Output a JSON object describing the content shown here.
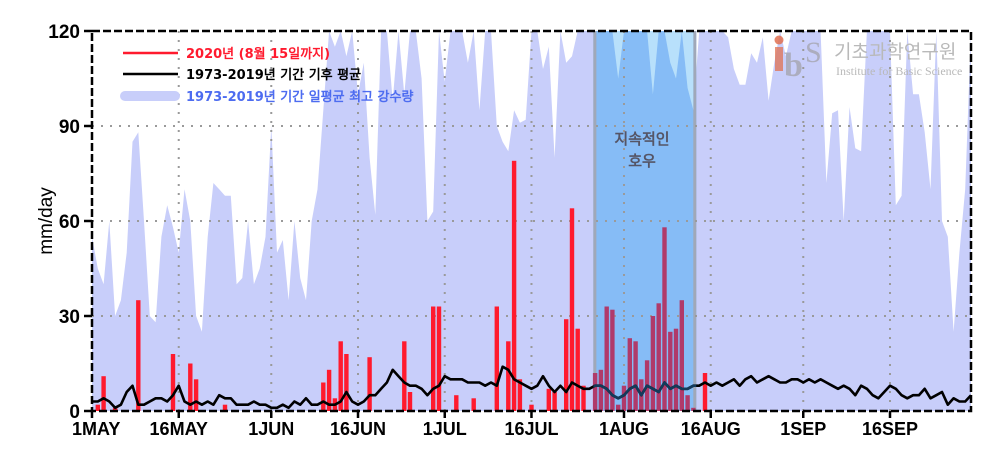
{
  "chart_data": {
    "type": "bar",
    "title": "",
    "xlabel": "",
    "ylabel": "mm/day",
    "ylim": [
      0,
      120
    ],
    "yticks": [
      0,
      30,
      60,
      90,
      120
    ],
    "xticks": [
      "1MAY",
      "16MAY",
      "1JUN",
      "16JUN",
      "1JUL",
      "16JUL",
      "1AUG",
      "16AUG",
      "1SEP",
      "16SEP"
    ],
    "xtick_day_index": [
      0,
      15,
      31,
      46,
      61,
      76,
      92,
      107,
      123,
      138
    ],
    "x_range_days": [
      0,
      152
    ],
    "grid": true,
    "legend_position": "upper-left",
    "legend": [
      {
        "label": "2020년 (8월 15일까지)",
        "color": "#ff1a2e",
        "kind": "line"
      },
      {
        "label": "1973-2019년 기간 기후 평균",
        "color": "#000000",
        "kind": "line"
      },
      {
        "label": "1973-2019년 기간 일평균 최고 강수량",
        "color": "#4d6cf0",
        "kind": "band",
        "band_color": "#c8cefa"
      }
    ],
    "annotation": {
      "text_line1": "지속적인",
      "text_line2": "호우",
      "start_day": 86.7,
      "end_day": 104.5,
      "color": "#7ab8f5"
    },
    "series": [
      {
        "name": "2020년 (8월 15일까지)",
        "type": "bar",
        "color": "#ff1a2e",
        "days": [
          1,
          2,
          4,
          8,
          14,
          17,
          18,
          23,
          40,
          41,
          42,
          43,
          44,
          48,
          54,
          55,
          59,
          60,
          63,
          66,
          70,
          72,
          73,
          74,
          76,
          79,
          80,
          82,
          83,
          84,
          85,
          87,
          88,
          89,
          90,
          91,
          92,
          93,
          94,
          95,
          96,
          97,
          98,
          99,
          100,
          101,
          102,
          103,
          104,
          106
        ],
        "values": [
          2,
          11,
          1,
          35,
          18,
          15,
          10,
          2,
          9,
          13,
          4,
          22,
          18,
          17,
          22,
          6,
          33,
          33,
          5,
          4,
          33,
          22,
          79,
          10,
          2,
          7,
          6,
          29,
          64,
          26,
          8,
          12,
          13,
          33,
          32,
          2,
          8,
          23,
          22,
          10,
          16,
          30,
          34,
          58,
          25,
          26,
          35,
          5,
          1,
          12
        ]
      },
      {
        "name": "1973-2019년 기간 기후 평균",
        "type": "line",
        "color": "#000000",
        "values": [
          3,
          3,
          4,
          3,
          1,
          2,
          6,
          8,
          2,
          2,
          3,
          4,
          4,
          3,
          5,
          8,
          3,
          2,
          3,
          2,
          3,
          2,
          5,
          4,
          4,
          2,
          2,
          2,
          3,
          2,
          2,
          1,
          1,
          2,
          1,
          3,
          2,
          4,
          2,
          2,
          3,
          2,
          2,
          3,
          6,
          3,
          2,
          3,
          5,
          5,
          7,
          9,
          13,
          11,
          9,
          8,
          8,
          7,
          5,
          7,
          8,
          11,
          10,
          10,
          10,
          9,
          9,
          9,
          8,
          9,
          8,
          14,
          13,
          10,
          9,
          8,
          7,
          8,
          11,
          8,
          6,
          8,
          6,
          9,
          8,
          7,
          7,
          8,
          8,
          7,
          5,
          4,
          5,
          7,
          8,
          5,
          8,
          7,
          6,
          9,
          7,
          8,
          7,
          7,
          8,
          8,
          9,
          8,
          9,
          8,
          9,
          10,
          8,
          10,
          11,
          9,
          10,
          11,
          10,
          9,
          9,
          10,
          10,
          9,
          10,
          9,
          10,
          9,
          8,
          7,
          8,
          7,
          5,
          8,
          7,
          5,
          4,
          6,
          8,
          7,
          5,
          4,
          5,
          5,
          7,
          4,
          5,
          6,
          2,
          4,
          3,
          3,
          5,
          5
        ]
      },
      {
        "name": "1973-2019년 기간 일평균 최고 강수량",
        "type": "area",
        "color": "#c8cefa",
        "values": [
          55,
          45,
          40,
          60,
          30,
          35,
          50,
          85,
          88,
          60,
          30,
          28,
          55,
          65,
          58,
          50,
          70,
          60,
          30,
          25,
          55,
          72,
          70,
          68,
          68,
          40,
          42,
          60,
          40,
          45,
          55,
          90,
          50,
          54,
          35,
          60,
          42,
          35,
          60,
          70,
          95,
          120,
          115,
          120,
          112,
          120,
          100,
          110,
          80,
          62,
          120,
          120,
          98,
          120,
          100,
          120,
          120,
          105,
          60,
          63,
          120,
          104,
          120,
          120,
          120,
          110,
          120,
          95,
          120,
          120,
          90,
          85,
          82,
          95,
          91,
          92,
          120,
          120,
          108,
          115,
          80,
          120,
          110,
          112,
          120,
          120,
          120,
          120,
          120,
          120,
          120,
          105,
          120,
          120,
          120,
          120,
          120,
          100,
          120,
          120,
          110,
          105,
          120,
          102,
          95,
          120,
          120,
          120,
          120,
          120,
          118,
          108,
          103,
          103,
          113,
          110,
          118,
          98,
          110,
          120,
          112,
          120,
          120,
          120,
          120,
          120,
          120,
          72,
          94,
          95,
          60,
          96,
          83,
          82,
          120,
          120,
          120,
          120,
          120,
          65,
          68,
          120,
          100,
          100,
          88,
          70,
          120,
          60,
          55,
          25,
          50,
          70,
          120
        ]
      }
    ]
  },
  "logo": {
    "korean": "기초과학연구원",
    "english": "Institute for Basic Science",
    "mark_i": "i",
    "mark_b": "b",
    "mark_s": "S"
  }
}
